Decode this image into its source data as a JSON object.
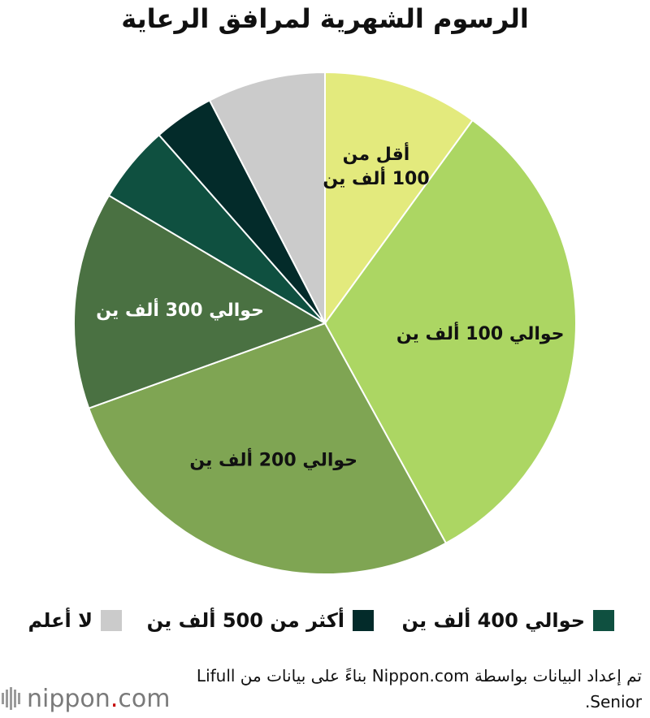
{
  "title": "الرسوم الشهرية لمرافق الرعاية",
  "chart_data": {
    "type": "pie",
    "title": "الرسوم الشهرية لمرافق الرعاية",
    "slices": [
      {
        "label": "أقل من 100 ألف ين",
        "label_lines": [
          "أقل من",
          "100 ألف ين"
        ],
        "value": 10.0,
        "color": "#e3ea7d",
        "label_color": "#111111"
      },
      {
        "label": "حوالي 100 ألف ين",
        "label_lines": [
          "حوالي 100 ألف ين"
        ],
        "value": 32.0,
        "color": "#acd663",
        "label_color": "#111111"
      },
      {
        "label": "حوالي 200 ألف ين",
        "label_lines": [
          "حوالي 200 ألف ين"
        ],
        "value": 27.5,
        "color": "#7fa553",
        "label_color": "#111111"
      },
      {
        "label": "حوالي 300 ألف ين",
        "label_lines": [
          "حوالي 300 ألف ين"
        ],
        "value": 14.0,
        "color": "#4a7142",
        "label_color": "#ffffff"
      },
      {
        "label": "حوالي 400 ألف ين",
        "label_lines": [],
        "value": 5.0,
        "color": "#0f5040",
        "label_color": "#ffffff"
      },
      {
        "label": "أكثر من 500 ألف ين",
        "label_lines": [],
        "value": 3.9,
        "color": "#032b2a",
        "label_color": "#ffffff"
      },
      {
        "label": "لا أعلم",
        "label_lines": [],
        "value": 7.6,
        "color": "#cbcbcb",
        "label_color": "#111111"
      }
    ],
    "start_angle_deg": 0,
    "direction": "clockwise",
    "legend": [
      {
        "label": "حوالي 400 ألف ين",
        "color": "#0f5040"
      },
      {
        "label": "أكثر من 500 ألف ين",
        "color": "#032b2a"
      },
      {
        "label": "لا أعلم",
        "color": "#cbcbcb"
      }
    ],
    "legend_position": "bottom"
  },
  "source_text": "تم إعداد البيانات بواسطة Nippon.com بناءً على بيانات من Lifull Senior.",
  "logo": {
    "text_main": "nippon",
    "text_dot": ".",
    "text_tld": "com",
    "dot_color": "#c40000"
  }
}
